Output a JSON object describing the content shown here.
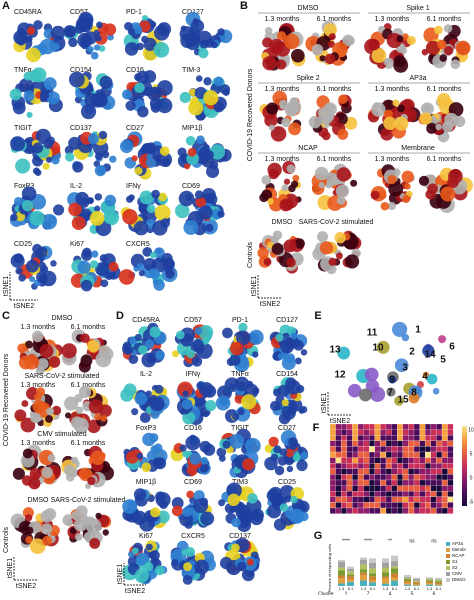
{
  "panels": {
    "A": {
      "label": "A",
      "markers": [
        "CD45RA",
        "CD57",
        "PD-1",
        "CD127",
        "TNFα",
        "CD154",
        "CD16",
        "TIM-3",
        "TIGIT",
        "CD137",
        "CD27",
        "MIP1β",
        "FoxP3",
        "IL-2",
        "IFNγ",
        "CD69",
        "CD25",
        "Ki67",
        "CXCR5"
      ],
      "y_axis": "tSNE1",
      "x_axis": "tSNE2"
    },
    "B": {
      "label": "B",
      "group_label": "COVID-19 Recovered Donors",
      "conditions": [
        "DMSO",
        "Spike 1",
        "Spike 2",
        "AP3a",
        "NCAP",
        "Membrane"
      ],
      "timepoints": [
        "1.3 months",
        "6.1 months"
      ],
      "control_group": "Controls",
      "control_conditions": [
        "DMSO",
        "SARS-CoV-2 stimulated"
      ],
      "y_axis": "tSNE1",
      "x_axis": "tSNE2"
    },
    "C": {
      "label": "C",
      "group_label": "COVID-19 Recovered Donors",
      "conditions": [
        "DMSO",
        "SARS-CoV-2 stimulated",
        "CMV stimulated"
      ],
      "timepoints": [
        "1.3 months",
        "6.1 months"
      ],
      "control_group": "Controls",
      "control_conditions": [
        "DMSO",
        "SARS-CoV-2 stimulated"
      ],
      "y_axis": "tSNE1",
      "x_axis": "tSNE2"
    },
    "D": {
      "label": "D",
      "markers": [
        "CD45RA",
        "CD57",
        "PD-1",
        "CD127",
        "IL-2",
        "IFNγ",
        "TNFα",
        "CD154",
        "FoxP3",
        "CD16",
        "TIGIT",
        "CD27",
        "MIP1β",
        "CD69",
        "TIM3",
        "CD25",
        "Ki67",
        "CXCR5",
        "CD137"
      ],
      "y_axis": "tSNE1",
      "x_axis": "tSNE2"
    },
    "E": {
      "label": "E",
      "clusters": [
        "13",
        "11",
        "1",
        "2",
        "6",
        "5",
        "12",
        "3",
        "4",
        "10",
        "9",
        "7",
        "8",
        "15",
        "14"
      ],
      "y_axis": "tSNE1",
      "x_axis": "tSNE2"
    },
    "F": {
      "label": "F",
      "colorbar_ticks": [
        "10",
        "5",
        "0",
        "-5"
      ]
    },
    "G": {
      "label": "G",
      "legend": [
        "AP3a",
        "Membr",
        "NCAP",
        "S1",
        "S2",
        "CMV",
        "DMSO"
      ],
      "clusters": [
        "1",
        "7",
        "4",
        "5",
        "6"
      ],
      "timepoints": [
        "1.3",
        "6.1"
      ],
      "x_axis": "Cluster",
      "y_axis": "Percent of responding cells",
      "significance": [
        "****",
        "****",
        "**",
        "ns",
        "ns"
      ]
    }
  }
}
